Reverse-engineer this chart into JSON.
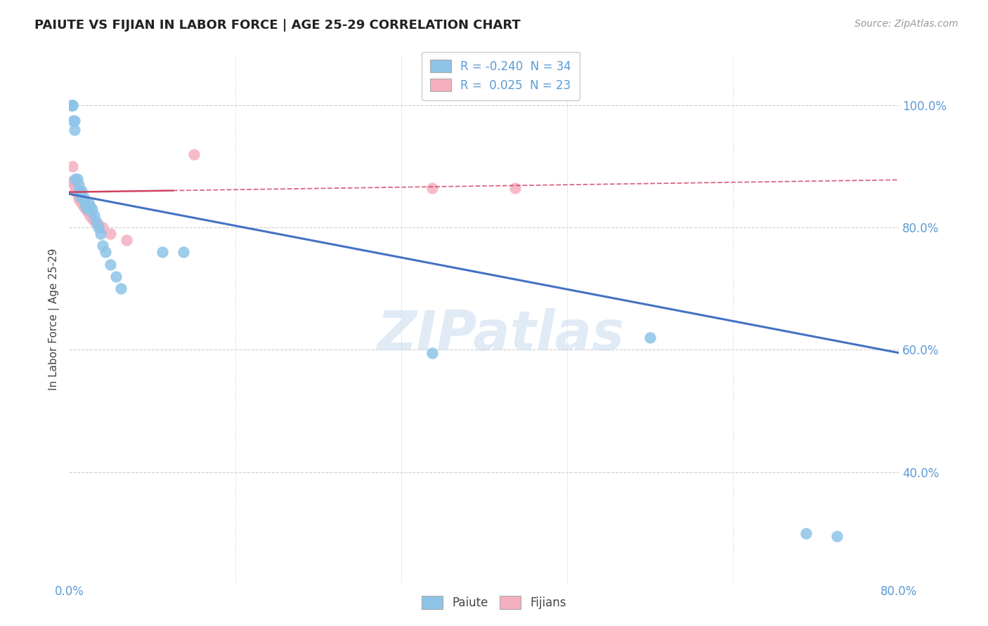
{
  "title": "PAIUTE VS FIJIAN IN LABOR FORCE | AGE 25-29 CORRELATION CHART",
  "source": "Source: ZipAtlas.com",
  "ylabel": "In Labor Force | Age 25-29",
  "ytick_values": [
    0.4,
    0.6,
    0.8,
    1.0
  ],
  "xlim": [
    0.0,
    0.8
  ],
  "ylim": [
    0.22,
    1.08
  ],
  "legend_r_blue": "-0.240",
  "legend_n_blue": "34",
  "legend_r_pink": "0.025",
  "legend_n_pink": "23",
  "watermark": "ZIPatlas",
  "blue_color": "#8DC4E8",
  "pink_color": "#F5B0C0",
  "line_blue": "#4472C4",
  "line_pink": "#D04060",
  "paiute_x": [
    0.002,
    0.003,
    0.003,
    0.004,
    0.005,
    0.005,
    0.006,
    0.008,
    0.009,
    0.01,
    0.011,
    0.012,
    0.014,
    0.015,
    0.016,
    0.018,
    0.019,
    0.02,
    0.022,
    0.024,
    0.026,
    0.028,
    0.03,
    0.032,
    0.035,
    0.04,
    0.045,
    0.05,
    0.09,
    0.11,
    0.35,
    0.56,
    0.71,
    0.74
  ],
  "paiute_y": [
    1.0,
    1.0,
    1.0,
    0.975,
    0.975,
    0.96,
    0.88,
    0.88,
    0.87,
    0.86,
    0.85,
    0.86,
    0.85,
    0.84,
    0.835,
    0.83,
    0.84,
    0.835,
    0.83,
    0.82,
    0.81,
    0.8,
    0.79,
    0.77,
    0.76,
    0.74,
    0.72,
    0.7,
    0.76,
    0.76,
    0.595,
    0.62,
    0.3,
    0.295
  ],
  "fijian_x": [
    0.002,
    0.003,
    0.004,
    0.005,
    0.006,
    0.007,
    0.008,
    0.009,
    0.01,
    0.012,
    0.014,
    0.016,
    0.018,
    0.02,
    0.022,
    0.025,
    0.028,
    0.032,
    0.04,
    0.055,
    0.12,
    0.35,
    0.43
  ],
  "fijian_y": [
    0.875,
    0.9,
    0.875,
    0.87,
    0.86,
    0.86,
    0.855,
    0.85,
    0.845,
    0.84,
    0.835,
    0.83,
    0.825,
    0.82,
    0.815,
    0.81,
    0.805,
    0.8,
    0.79,
    0.78,
    0.92,
    0.865,
    0.865
  ],
  "xgrid_values": [
    0.16,
    0.32,
    0.48,
    0.64
  ]
}
